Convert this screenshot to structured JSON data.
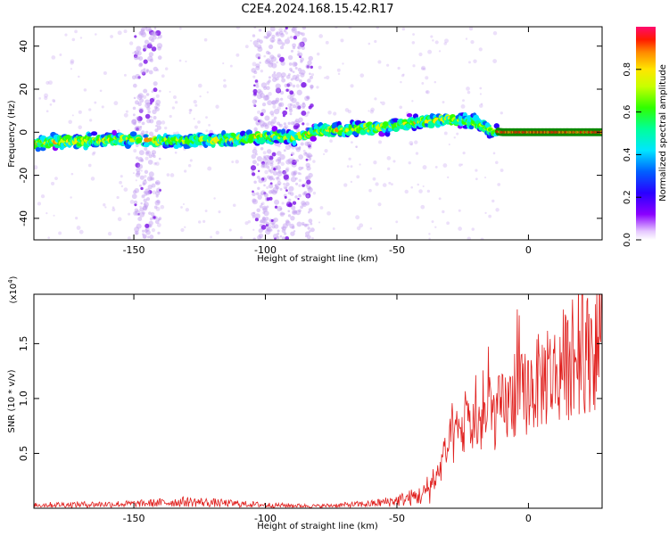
{
  "title": "C2E4.2024.168.15.42.R17",
  "chart_data": [
    {
      "type": "heatmap",
      "xlabel": "Height of straight line (km)",
      "ylabel": "Frequency (Hz)",
      "xlim": [
        -188,
        28
      ],
      "ylim": [
        -50,
        49
      ],
      "xticks": [
        -150,
        -100,
        -50,
        0
      ],
      "yticks": [
        -40,
        -20,
        0,
        20,
        40
      ],
      "colorbar": {
        "label": "Normalized spectral amplitude",
        "range": [
          0.0,
          1.0
        ],
        "ticks": [
          "0.0",
          "0.2",
          "0.4",
          "0.6",
          "0.8"
        ]
      },
      "ridge": {
        "x": [
          -188,
          -170,
          -150,
          -140,
          -130,
          -110,
          -100,
          -85,
          -80,
          -70,
          -60,
          -50,
          -40,
          -30,
          -20,
          -15,
          -10,
          0,
          10,
          20,
          28
        ],
        "y": [
          -5,
          -4,
          -3,
          -4,
          -4,
          -3,
          -2,
          -2,
          1,
          1,
          2,
          3,
          5,
          6,
          5,
          1,
          0,
          0,
          0,
          0,
          0
        ]
      },
      "broadband_bands": [
        [
          -150,
          -140
        ],
        [
          -105,
          -82
        ]
      ]
    },
    {
      "type": "line",
      "xlabel": "Height of straight line (km)",
      "ylabel": "SNR (10 * v/v)",
      "y_exponent_label": "(x10",
      "y_exponent_power": "4",
      "y_exponent_close": ")",
      "xlim": [
        -188,
        28
      ],
      "ylim": [
        0,
        1.95
      ],
      "xticks": [
        -150,
        -100,
        -50,
        0
      ],
      "yticks": [
        0.5,
        1.0,
        1.5
      ],
      "ytick_labels": [
        "0.5",
        "1.0",
        "1.5"
      ],
      "color": "#e0201e",
      "envelope": {
        "x": [
          -188,
          -150,
          -130,
          -100,
          -80,
          -60,
          -50,
          -40,
          -36,
          -33,
          -30,
          -25,
          -20,
          -15,
          -10,
          -5,
          0,
          5,
          10,
          15,
          20,
          25,
          28
        ],
        "y": [
          0.03,
          0.04,
          0.06,
          0.03,
          0.02,
          0.04,
          0.07,
          0.12,
          0.25,
          0.45,
          0.65,
          0.8,
          0.85,
          0.9,
          1.0,
          1.1,
          1.2,
          1.3,
          1.35,
          1.45,
          1.55,
          1.6,
          1.7
        ]
      }
    }
  ]
}
